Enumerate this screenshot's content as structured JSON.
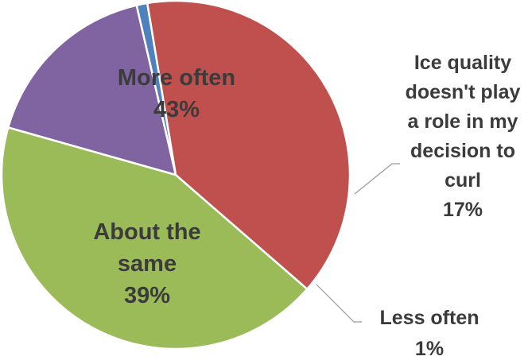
{
  "chart_data": {
    "type": "pie",
    "title": "",
    "legend": "none",
    "slices": [
      {
        "name": "More often",
        "value": 43,
        "label": "43%",
        "color": "#9bbb59",
        "name_lines": [
          "More often"
        ]
      },
      {
        "name": "Ice quality doesn't play a role in my decision to curl",
        "value": 17,
        "label": "17%",
        "color": "#8064a2",
        "name_lines": [
          "Ice quality",
          "doesn't play",
          "a role in my",
          "decision to",
          "curl"
        ]
      },
      {
        "name": "Less often",
        "value": 1,
        "label": "1%",
        "color": "#4f81bd",
        "name_lines": [
          "Less often"
        ]
      },
      {
        "name": "About the same",
        "value": 39,
        "label": "39%",
        "color": "#c0504d",
        "name_lines": [
          "About the",
          "same"
        ]
      }
    ]
  }
}
